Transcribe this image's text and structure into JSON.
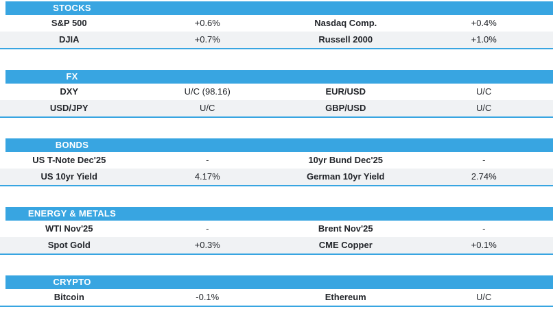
{
  "colors": {
    "accent_blue": "#38a5e1",
    "alt_row_bg": "#f0f2f4",
    "header_text": "#ffffff",
    "body_text": "#22252a"
  },
  "chart_data": {
    "type": "table",
    "layout": "four-column market summary, section header bar in accent blue, alternating row shading, blue rule under each section",
    "sections": [
      {
        "title": "STOCKS",
        "rows": [
          [
            "S&P 500",
            "+0.6%",
            "Nasdaq Comp.",
            "+0.4%"
          ],
          [
            "DJIA",
            "+0.7%",
            "Russell 2000",
            "+1.0%"
          ]
        ]
      },
      {
        "title": "FX",
        "rows": [
          [
            "DXY",
            "U/C (98.16)",
            "EUR/USD",
            "U/C"
          ],
          [
            "USD/JPY",
            "U/C",
            "GBP/USD",
            "U/C"
          ]
        ]
      },
      {
        "title": "BONDS",
        "rows": [
          [
            "US T-Note Dec'25",
            "-",
            "10yr Bund Dec'25",
            "-"
          ],
          [
            "US 10yr Yield",
            "4.17%",
            "German 10yr Yield",
            "2.74%"
          ]
        ]
      },
      {
        "title": "ENERGY & METALS",
        "rows": [
          [
            "WTI Nov'25",
            "-",
            "Brent Nov'25",
            "-"
          ],
          [
            "Spot Gold",
            "+0.3%",
            "CME Copper",
            "+0.1%"
          ]
        ]
      },
      {
        "title": "CRYPTO",
        "rows": [
          [
            "Bitcoin",
            "-0.1%",
            "Ethereum",
            "U/C"
          ]
        ]
      }
    ]
  }
}
